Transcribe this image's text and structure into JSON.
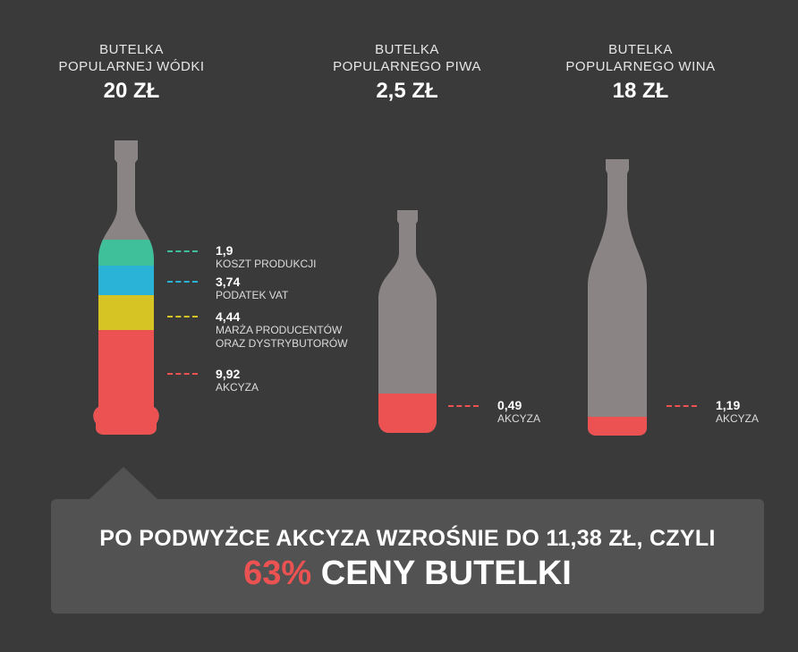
{
  "bottles": [
    {
      "title1": "BUTELKA",
      "title2": "POPULARNEJ WÓDKI",
      "price": "20 ZŁ"
    },
    {
      "title1": "BUTELKA",
      "title2": "POPULARNEGO PIWA",
      "price": "2,5 ZŁ"
    },
    {
      "title1": "BUTELKA",
      "title2": "POPULARNEGO WINA",
      "price": "18 ZŁ"
    }
  ],
  "vodka_breakdown": [
    {
      "value": "1,9",
      "label": "KOSZT PRODUKCJI",
      "color": "#3fbf9a"
    },
    {
      "value": "3,74",
      "label": "PODATEK VAT",
      "color": "#2ab3d6"
    },
    {
      "value": "4,44",
      "label1": "MARŻA PRODUCENTÓW",
      "label2": "ORAZ DYSTRYBUTORÓW",
      "color": "#d6c324"
    },
    {
      "value": "9,92",
      "label": "AKCYZA",
      "color": "#ec5252"
    }
  ],
  "beer_excise": {
    "value": "0,49",
    "label": "AKCYZA",
    "color": "#ec5252"
  },
  "wine_excise": {
    "value": "1,19",
    "label": "AKCYZA",
    "color": "#ec5252"
  },
  "colors": {
    "background": "#3a3a3a",
    "bottle": "#8a8484",
    "banner": "#525252",
    "accent": "#ec5252"
  },
  "banner": {
    "line1": "PO PODWYŻCE AKCYZA WZROŚNIE DO 11,38 ZŁ, CZYLI",
    "highlight": "63%",
    "line2_rest": "CENY BUTELKI"
  }
}
